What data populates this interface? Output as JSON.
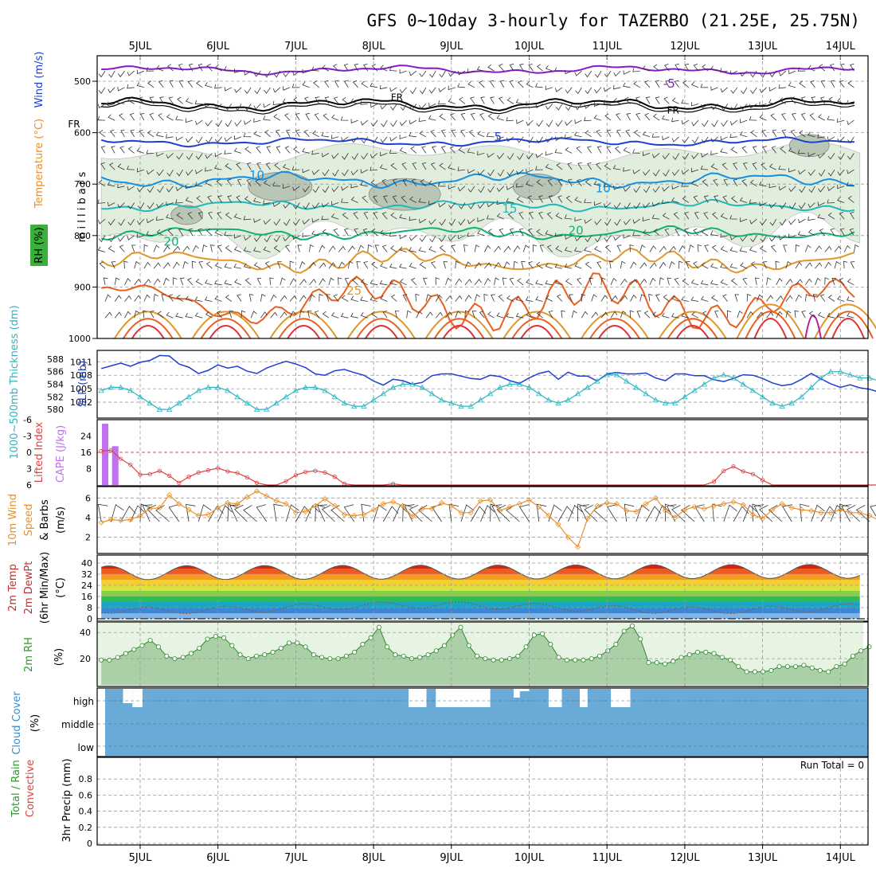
{
  "title": "GFS 0~10day 3-hourly for TAZERBO (21.25E, 25.75N)",
  "days": [
    "5JUL",
    "6JUL",
    "7JUL",
    "8JUL",
    "9JUL",
    "10JUL",
    "11JUL",
    "12JUL",
    "13JUL",
    "14JUL"
  ],
  "run_total": "Run Total = 0",
  "colors": {
    "blue": "#1f3fd0",
    "cyan": "#31b3c0",
    "purple": "#a040e0",
    "red": "#e04040",
    "orange": "#e8902a",
    "green": "#2a9a2a",
    "cloud": "#6aaad6",
    "rh_fill": "#dcecd8"
  },
  "chart_data": [
    {
      "type": "contour",
      "panel": "upper-air",
      "ylabel_parts": [
        "RH (%)",
        "Temperature (°C)",
        "Wind (m/s)"
      ],
      "ylabel2": "m i l l i b a r s",
      "yticks": [
        "500",
        "600",
        "700",
        "800",
        "900",
        "1000"
      ],
      "ylim": [
        450,
        1000
      ],
      "contour_labels": [
        {
          "text": "-5",
          "p": 505,
          "day": 11.8
        },
        {
          "text": "FR",
          "p": 530,
          "day": 8.3
        },
        {
          "text": "FR",
          "p": 555,
          "day": 11.85
        },
        {
          "text": "FR",
          "p": 582,
          "day": 4.15
        },
        {
          "text": "5",
          "p": 608,
          "day": 9.6
        },
        {
          "text": "10",
          "p": 683,
          "day": 6.5
        },
        {
          "text": "10",
          "p": 708,
          "day": 10.95
        },
        {
          "text": "15",
          "p": 748,
          "day": 9.75
        },
        {
          "text": "20",
          "p": 790,
          "day": 10.6
        },
        {
          "text": "20",
          "p": 812,
          "day": 5.4
        },
        {
          "text": "25",
          "p": 907,
          "day": 7.75
        }
      ],
      "isotherms": [
        {
          "name": "-5",
          "color": "#8a18c8",
          "base": 478,
          "amp": 8
        },
        {
          "name": "FR",
          "color": "#000000",
          "base": 545,
          "amp": 12
        },
        {
          "name": "5",
          "color": "#1f3fd0",
          "base": 618,
          "amp": 8
        },
        {
          "name": "10",
          "color": "#1590e0",
          "base": 692,
          "amp": 14
        },
        {
          "name": "15",
          "color": "#20b8b8",
          "base": 742,
          "amp": 10
        },
        {
          "name": "20",
          "color": "#14b070",
          "base": 795,
          "amp": 12
        },
        {
          "name": "25",
          "color": "#e0962a",
          "base": 850,
          "amp": 22
        },
        {
          "name": "30",
          "color": "#e86020",
          "base": 930,
          "amp": 50
        }
      ]
    },
    {
      "type": "line",
      "panel": "slp-thickness",
      "ylabel_left": "1000~500mb Thickness (dm)",
      "ylabel_right": "SLP (mb)",
      "yticks_left": [
        "588",
        "586",
        "584",
        "582",
        "580"
      ],
      "yticks_right": [
        "1011",
        "1008",
        "1005",
        "1002"
      ],
      "ylim_right": [
        999,
        1013
      ],
      "ylim_left": [
        579,
        589
      ],
      "x_start_day": 4.5,
      "x_step_day": 0.125,
      "series": [
        {
          "values": [
            1009.5,
            1010.1,
            1010.7,
            1010.0,
            1010.9,
            1011.3,
            1012.4,
            1012.3,
            1010.5,
            1009.8,
            1008.4,
            1009.1,
            1010.3,
            1009.6,
            1010.0,
            1008.9,
            1008.4,
            1009.6,
            1010.4,
            1011.1,
            1010.5,
            1009.7,
            1008.3,
            1008.0,
            1009.0,
            1009.3,
            1008.6,
            1008.0,
            1006.7,
            1005.8,
            1007.1,
            1006.8,
            1006.0,
            1006.4,
            1007.9,
            1008.3,
            1008.3,
            1007.8,
            1007.3,
            1007.1,
            1008.0,
            1007.7,
            1006.8,
            1006.2,
            1007.4,
            1008.4,
            1008.9,
            1007.1,
            1008.7,
            1007.8,
            1007.8,
            1006.7,
            1008.3,
            1008.6,
            1008.3,
            1008.3,
            1008.5,
            1007.4,
            1006.8,
            1008.3,
            1008.3,
            1007.9,
            1007.9,
            1007.0,
            1006.6,
            1007.3,
            1008.1,
            1008.0,
            1007.3,
            1006.3,
            1005.7,
            1006.0,
            1007.1,
            1008.4,
            1007.2,
            1006.1,
            1005.3,
            1005.9,
            1005.2,
            1004.9,
            1004.2,
            1004.3,
            1004.5,
            1003.6,
            1003.6,
            1003.0,
            1001.3,
            1000.1,
            1001.4,
            1002.3,
            1002.5,
            1002.4,
            1002.5,
            1003.6,
            1004.5
          ]
        },
        {
          "values": [
            583.0,
            583.5,
            583.5,
            583.0,
            582.0,
            581.0,
            580.0,
            580.0,
            581.0,
            582.0,
            583.0,
            583.5,
            583.5,
            583.0,
            582.0,
            581.0,
            580.0,
            580.0,
            581.0,
            582.0,
            583.0,
            583.5,
            583.5,
            583.0,
            582.0,
            581.0,
            580.5,
            580.5,
            581.5,
            582.5,
            583.5,
            584.0,
            584.0,
            583.5,
            582.5,
            581.5,
            581.0,
            580.5,
            580.5,
            581.5,
            582.5,
            583.5,
            584.0,
            584.0,
            583.5,
            582.5,
            581.5,
            581.0,
            581.5,
            582.5,
            583.5,
            584.5,
            585.5,
            585.5,
            584.5,
            583.5,
            582.5,
            581.5,
            581.0,
            581.0,
            582.0,
            583.0,
            584.0,
            585.0,
            585.5,
            585.0,
            584.0,
            583.0,
            582.0,
            581.0,
            580.5,
            581.0,
            582.0,
            583.5,
            585.0,
            586.0,
            586.0,
            585.5,
            585.0,
            585.0,
            584.5,
            584.0,
            584.5,
            585.5,
            586.5,
            587.5,
            588.5,
            588.0,
            587.5,
            586.5,
            586.0,
            585.5,
            585.0,
            585.0,
            585.5
          ]
        }
      ]
    },
    {
      "type": "bar+line",
      "panel": "cape-li",
      "ylabel_left": "Lifted Index",
      "ylabel_right": "CAPE (J/kg)",
      "yticks_li": [
        "-6",
        "-3",
        "0",
        "3",
        "6"
      ],
      "yticks_cape": [
        "24",
        "16",
        "8"
      ],
      "cape_bars": [
        {
          "day": 4.55,
          "value": 30
        },
        {
          "day": 4.68,
          "value": 19
        }
      ],
      "li_values": [
        -0.2,
        -0.4,
        1.2,
        2.3,
        4.1,
        4.0,
        3.4,
        4.3,
        5.6,
        4.5,
        3.7,
        3.3,
        2.9,
        3.5,
        3.8,
        4.6,
        5.6,
        6.0,
        6.0,
        5.3,
        4.2,
        3.6,
        3.4,
        3.7,
        4.5,
        5.8,
        6.0,
        6.0,
        6.0,
        6.0,
        5.8,
        6.0,
        6.0,
        6.0,
        6.0,
        6.0,
        6.0,
        6.0,
        6.0,
        6.0,
        6.0,
        6.0,
        6.0,
        6.0,
        6.0,
        6.0,
        6.0,
        6.0,
        6.0,
        6.0,
        6.0,
        6.0,
        6.0,
        6.0,
        6.0,
        6.0,
        6.0,
        6.0,
        6.0,
        6.0,
        6.0,
        6.0,
        6.0,
        5.4,
        3.4,
        2.6,
        3.5,
        4.0,
        5.1,
        6.0,
        6.0,
        6.0,
        6.0,
        6.0,
        6.0,
        6.0,
        6.0,
        6.0,
        6.0,
        6.0,
        6.0,
        6.0,
        6.0,
        6.0,
        6.0,
        6.0,
        6.0,
        6.0,
        6.0,
        6.0,
        6.0,
        6.0,
        5.5,
        5.0,
        3.5
      ]
    },
    {
      "type": "line",
      "panel": "wind10m",
      "ylabel": [
        "10m Wind",
        "Speed",
        "& Barbs",
        "(m/s)"
      ],
      "yticks": [
        "6",
        "4",
        "2"
      ],
      "ylim": [
        0.5,
        7
      ],
      "values": [
        3.5,
        3.8,
        3.7,
        3.8,
        4.2,
        4.9,
        5.0,
        6.3,
        5.4,
        4.8,
        4.2,
        4.3,
        5.0,
        5.5,
        5.4,
        6.1,
        6.7,
        6.2,
        5.7,
        5.4,
        4.5,
        4.6,
        5.2,
        5.9,
        5.2,
        4.3,
        4.2,
        4.3,
        4.8,
        5.4,
        5.6,
        5.2,
        4.1,
        4.9,
        4.9,
        5.5,
        5.2,
        4.5,
        4.5,
        5.7,
        5.8,
        4.7,
        5.1,
        5.4,
        5.8,
        5.1,
        4.2,
        3.3,
        2.0,
        1.0,
        3.9,
        5.2,
        5.5,
        5.4,
        4.7,
        4.6,
        5.4,
        6.0,
        4.7,
        4.0,
        4.8,
        5.1,
        4.9,
        5.2,
        5.4,
        5.6,
        5.3,
        4.3,
        3.9,
        4.8,
        5.4,
        5.0,
        4.8,
        4.7,
        4.5,
        4.5,
        4.8,
        4.5,
        4.5,
        4.2,
        3.7,
        3.0,
        2.5,
        2.4,
        3.2,
        3.6,
        4.1,
        4.6,
        4.6,
        5.2,
        5.5,
        5.8,
        5.3,
        4.9,
        5.0
      ]
    },
    {
      "type": "area+line",
      "panel": "temp2m",
      "ylabel": [
        "2m Temp",
        "2m DewPt",
        "(6hr Min/Max)",
        "(°C)"
      ],
      "yticks": [
        "40",
        "32",
        "24",
        "16",
        "8",
        "0"
      ],
      "ylim": [
        -2,
        42
      ],
      "temp_mean": 33.0,
      "temp_amp": 5.0,
      "temp_trend": 0.35,
      "dewpt_mean": 8.0,
      "dewpt_amp": 2.5,
      "bands": [
        {
          "lo": 0,
          "hi": 4,
          "color": "#7fb5ea"
        },
        {
          "lo": 4,
          "hi": 8,
          "color": "#3a87d8"
        },
        {
          "lo": 8,
          "hi": 12,
          "color": "#1ba6c8"
        },
        {
          "lo": 12,
          "hi": 16,
          "color": "#2dba5a"
        },
        {
          "lo": 16,
          "hi": 20,
          "color": "#84d148"
        },
        {
          "lo": 20,
          "hi": 24,
          "color": "#d9e33c"
        },
        {
          "lo": 24,
          "hi": 28,
          "color": "#f5cf32"
        },
        {
          "lo": 28,
          "hi": 32,
          "color": "#f59a23"
        },
        {
          "lo": 32,
          "hi": 36,
          "color": "#ee5a1f"
        },
        {
          "lo": 36,
          "hi": 40,
          "color": "#d42418"
        },
        {
          "lo": 40,
          "hi": 44,
          "color": "#8a2016"
        }
      ]
    },
    {
      "type": "area",
      "panel": "rh2m",
      "ylabel": [
        "2m RH",
        "(%)"
      ],
      "yticks": [
        "40",
        "20"
      ],
      "ylim": [
        0,
        45
      ],
      "values": [
        19,
        19,
        21,
        24,
        27,
        30,
        34,
        29,
        22,
        20,
        21,
        24,
        28,
        35,
        37,
        36,
        30,
        23,
        20,
        22,
        23,
        25,
        28,
        32,
        32,
        29,
        23,
        21,
        20,
        20,
        22,
        25,
        31,
        36,
        44,
        29,
        23,
        22,
        20,
        21,
        23,
        26,
        30,
        38,
        44,
        30,
        22,
        20,
        19,
        19,
        20,
        22,
        29,
        38,
        39,
        31,
        21,
        19,
        19,
        19,
        20,
        22,
        26,
        31,
        41,
        45,
        35,
        17,
        17,
        16,
        18,
        21,
        23,
        25,
        25,
        24,
        21,
        19,
        14,
        10,
        10,
        10,
        11,
        14,
        14,
        14,
        15,
        13,
        11,
        10,
        14,
        16,
        22,
        26,
        29
      ]
    },
    {
      "type": "bar",
      "panel": "cloud",
      "ylabel": [
        "Cloud Cover",
        "(%)"
      ],
      "yticks": [
        "high",
        "middle",
        "low"
      ],
      "gaps": [
        {
          "d0": 4.78,
          "d1": 4.9,
          "top": 883
        },
        {
          "d0": 4.9,
          "d1": 5.03,
          "top": 888
        },
        {
          "d0": 8.45,
          "d1": 8.68,
          "top": 888
        },
        {
          "d0": 8.8,
          "d1": 9.5,
          "top": 888
        },
        {
          "d0": 9.8,
          "d1": 9.88,
          "top": 876
        },
        {
          "d0": 9.88,
          "d1": 10.0,
          "top": 868
        },
        {
          "d0": 10.25,
          "d1": 10.42,
          "top": 888
        },
        {
          "d0": 10.65,
          "d1": 10.75,
          "top": 888
        },
        {
          "d0": 11.05,
          "d1": 11.3,
          "top": 888
        }
      ]
    },
    {
      "type": "bar",
      "panel": "precip",
      "ylabel_left": [
        "Total / Rain",
        "Convective"
      ],
      "ylabel_right": "3hr Precip (mm)",
      "yticks": [
        "0.8",
        "0.6",
        "0.4",
        "0.2",
        "0"
      ],
      "ylim": [
        0,
        0.96
      ],
      "values": []
    }
  ]
}
